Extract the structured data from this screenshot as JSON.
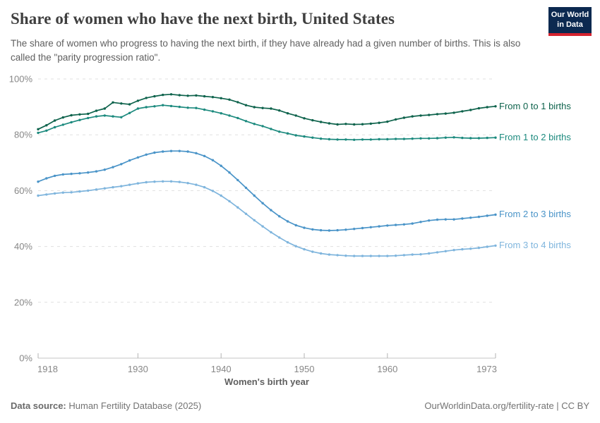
{
  "header": {
    "title": "Share of women who have the next birth, United States",
    "subtitle": "The share of women who progress to having the next birth, if they have already had a given number of births. This is also called the \"parity progression ratio\".",
    "logo": {
      "line1": "Our World",
      "line2": "in Data"
    }
  },
  "footer": {
    "source_label": "Data source:",
    "source_text": "Human Fertility Database (2025)",
    "credit": "OurWorldinData.org/fertility-rate | CC BY"
  },
  "chart_data": {
    "type": "line",
    "title": "Share of women who have the next birth, United States",
    "xlabel": "Women's birth year",
    "ylabel": "",
    "xlim": [
      1918,
      1973
    ],
    "ylim": [
      0,
      100
    ],
    "grid": "horizontal dashed",
    "legend_position": "right end-of-line labels",
    "grid_color": "#e0e0e0",
    "axis_color": "#c4c4c4",
    "tick_color": "#b3b3b3",
    "x_ticks": [
      {
        "value": 1918,
        "label": "1918"
      },
      {
        "value": 1930,
        "label": "1930"
      },
      {
        "value": 1940,
        "label": "1940"
      },
      {
        "value": 1950,
        "label": "1950"
      },
      {
        "value": 1960,
        "label": "1960"
      },
      {
        "value": 1973,
        "label": "1973"
      }
    ],
    "y_ticks": [
      {
        "value": 0,
        "label": "0%"
      },
      {
        "value": 20,
        "label": "20%"
      },
      {
        "value": 40,
        "label": "40%"
      },
      {
        "value": 60,
        "label": "60%"
      },
      {
        "value": 80,
        "label": "80%"
      },
      {
        "value": 100,
        "label": "100%"
      }
    ],
    "x": [
      1918,
      1919,
      1920,
      1921,
      1922,
      1923,
      1924,
      1925,
      1926,
      1927,
      1928,
      1929,
      1930,
      1931,
      1932,
      1933,
      1934,
      1935,
      1936,
      1937,
      1938,
      1939,
      1940,
      1941,
      1942,
      1943,
      1944,
      1945,
      1946,
      1947,
      1948,
      1949,
      1950,
      1951,
      1952,
      1953,
      1954,
      1955,
      1956,
      1957,
      1958,
      1959,
      1960,
      1961,
      1962,
      1963,
      1964,
      1965,
      1966,
      1967,
      1968,
      1969,
      1970,
      1971,
      1972,
      1973
    ],
    "series": [
      {
        "name": "From 0 to 1 births",
        "color": "#0e634c",
        "values": [
          82.0,
          83.4,
          85.1,
          86.2,
          87.0,
          87.3,
          87.5,
          88.6,
          89.4,
          91.6,
          91.2,
          90.9,
          92.2,
          93.2,
          93.8,
          94.3,
          94.5,
          94.2,
          94.0,
          94.1,
          93.8,
          93.5,
          93.1,
          92.6,
          91.7,
          90.6,
          89.9,
          89.6,
          89.4,
          88.7,
          87.7,
          86.9,
          85.9,
          85.2,
          84.6,
          84.1,
          83.7,
          83.9,
          83.7,
          83.8,
          84.0,
          84.3,
          84.7,
          85.5,
          86.1,
          86.6,
          86.9,
          87.1,
          87.4,
          87.6,
          87.9,
          88.4,
          88.9,
          89.5,
          89.9,
          90.2
        ]
      },
      {
        "name": "From 1 to 2 births",
        "color": "#1c8a7e",
        "values": [
          80.7,
          81.5,
          82.7,
          83.6,
          84.5,
          85.3,
          86.0,
          86.6,
          86.9,
          86.6,
          86.3,
          87.8,
          89.4,
          89.9,
          90.2,
          90.6,
          90.3,
          90.0,
          89.7,
          89.6,
          89.0,
          88.4,
          87.7,
          86.9,
          86.0,
          84.9,
          83.9,
          83.1,
          82.1,
          81.1,
          80.5,
          79.8,
          79.4,
          79.0,
          78.6,
          78.4,
          78.3,
          78.3,
          78.2,
          78.3,
          78.3,
          78.4,
          78.4,
          78.5,
          78.5,
          78.6,
          78.7,
          78.7,
          78.8,
          79.0,
          79.1,
          78.9,
          78.8,
          78.8,
          78.9,
          79.0
        ]
      },
      {
        "name": "From 2 to 3 births",
        "color": "#4a94c8",
        "values": [
          63.2,
          64.4,
          65.3,
          65.8,
          66.0,
          66.2,
          66.5,
          66.9,
          67.5,
          68.4,
          69.5,
          70.8,
          71.9,
          72.9,
          73.6,
          74.0,
          74.2,
          74.2,
          74.0,
          73.4,
          72.4,
          70.9,
          68.9,
          66.5,
          63.8,
          61.0,
          58.2,
          55.5,
          53.0,
          50.8,
          49.0,
          47.6,
          46.7,
          46.1,
          45.8,
          45.7,
          45.8,
          46.0,
          46.3,
          46.6,
          46.9,
          47.2,
          47.5,
          47.7,
          47.9,
          48.2,
          48.8,
          49.3,
          49.6,
          49.7,
          49.7,
          50.0,
          50.3,
          50.6,
          51.0,
          51.4
        ]
      },
      {
        "name": "From 3 to 4 births",
        "color": "#7fb5dd",
        "values": [
          58.2,
          58.6,
          59.0,
          59.3,
          59.4,
          59.7,
          60.0,
          60.4,
          60.8,
          61.2,
          61.6,
          62.1,
          62.6,
          63.0,
          63.2,
          63.3,
          63.3,
          63.1,
          62.7,
          62.1,
          61.2,
          59.9,
          58.2,
          56.2,
          54.0,
          51.7,
          49.4,
          47.2,
          45.1,
          43.2,
          41.5,
          40.1,
          39.0,
          38.1,
          37.5,
          37.1,
          36.9,
          36.7,
          36.6,
          36.6,
          36.6,
          36.6,
          36.6,
          36.7,
          36.9,
          37.1,
          37.2,
          37.5,
          37.9,
          38.3,
          38.7,
          39.0,
          39.2,
          39.5,
          39.9,
          40.3
        ]
      }
    ]
  }
}
